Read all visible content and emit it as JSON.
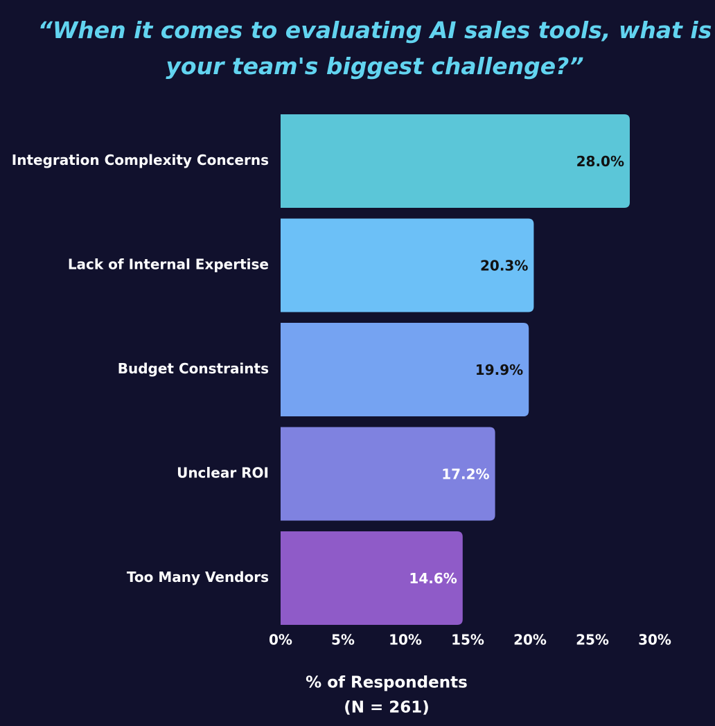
{
  "chart_data": {
    "type": "bar",
    "orientation": "horizontal",
    "title": "“When it comes to evaluating AI sales tools, what is your team's biggest challenge?”",
    "categories": [
      "Integration Complexity Concerns",
      "Lack of Internal Expertise",
      "Budget Constraints",
      "Unclear ROI",
      "Too Many Vendors"
    ],
    "values": [
      28.0,
      20.3,
      19.9,
      17.2,
      14.6
    ],
    "value_labels": [
      "28.0%",
      "20.3%",
      "19.9%",
      "17.2%",
      "14.6%"
    ],
    "colors": [
      "#5bc6d8",
      "#6cc0f7",
      "#75a3f2",
      "#7f82e0",
      "#8f5bc8"
    ],
    "xlim": [
      0,
      30
    ],
    "xticks": [
      {
        "value": 0,
        "label": "0%"
      },
      {
        "value": 5,
        "label": "5%"
      },
      {
        "value": 10,
        "label": "10%"
      },
      {
        "value": 15,
        "label": "15%"
      },
      {
        "value": 20,
        "label": "20%"
      },
      {
        "value": 25,
        "label": "25%"
      },
      {
        "value": 30,
        "label": "30%"
      }
    ],
    "xlabel": "% of Respondents",
    "xlabel_note": "(N = 261)",
    "grid": false
  }
}
